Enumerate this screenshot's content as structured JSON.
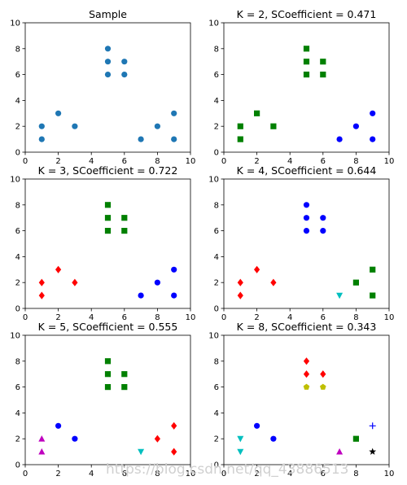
{
  "chart_data": [
    {
      "type": "scatter",
      "title": "Sample",
      "xlim": [
        0,
        10
      ],
      "ylim": [
        0,
        10
      ],
      "xticks": [
        0,
        2,
        4,
        6,
        8,
        10
      ],
      "yticks": [
        0,
        2,
        4,
        6,
        8,
        10
      ],
      "series": [
        {
          "color": "#1f77b4",
          "marker": "circle",
          "points": [
            [
              1,
              2
            ],
            [
              1,
              1
            ],
            [
              2,
              3
            ],
            [
              3,
              2
            ],
            [
              5,
              8
            ],
            [
              5,
              7
            ],
            [
              5,
              6
            ],
            [
              6,
              7
            ],
            [
              6,
              6
            ],
            [
              7,
              1
            ],
            [
              8,
              2
            ],
            [
              9,
              3
            ],
            [
              9,
              1
            ]
          ]
        }
      ]
    },
    {
      "type": "scatter",
      "title": "K = 2, SCoefficient = 0.471",
      "xlim": [
        0,
        10
      ],
      "ylim": [
        0,
        10
      ],
      "xticks": [
        0,
        2,
        4,
        6,
        8,
        10
      ],
      "yticks": [
        0,
        2,
        4,
        6,
        8,
        10
      ],
      "series": [
        {
          "color": "#008000",
          "marker": "square",
          "points": [
            [
              1,
              2
            ],
            [
              1,
              1
            ],
            [
              2,
              3
            ],
            [
              3,
              2
            ],
            [
              5,
              8
            ],
            [
              5,
              7
            ],
            [
              5,
              6
            ],
            [
              6,
              7
            ],
            [
              6,
              6
            ]
          ]
        },
        {
          "color": "#0000ff",
          "marker": "circle",
          "points": [
            [
              7,
              1
            ],
            [
              8,
              2
            ],
            [
              9,
              3
            ],
            [
              9,
              1
            ]
          ]
        }
      ]
    },
    {
      "type": "scatter",
      "title": "K = 3, SCoefficient = 0.722",
      "xlim": [
        0,
        10
      ],
      "ylim": [
        0,
        10
      ],
      "xticks": [
        0,
        2,
        4,
        6,
        8,
        10
      ],
      "yticks": [
        0,
        2,
        4,
        6,
        8,
        10
      ],
      "series": [
        {
          "color": "#ff0000",
          "marker": "diamond",
          "points": [
            [
              1,
              2
            ],
            [
              1,
              1
            ],
            [
              2,
              3
            ],
            [
              3,
              2
            ]
          ]
        },
        {
          "color": "#008000",
          "marker": "square",
          "points": [
            [
              5,
              8
            ],
            [
              5,
              7
            ],
            [
              5,
              6
            ],
            [
              6,
              7
            ],
            [
              6,
              6
            ]
          ]
        },
        {
          "color": "#0000ff",
          "marker": "circle",
          "points": [
            [
              7,
              1
            ],
            [
              8,
              2
            ],
            [
              9,
              3
            ],
            [
              9,
              1
            ]
          ]
        }
      ]
    },
    {
      "type": "scatter",
      "title": "K = 4, SCoefficient = 0.644",
      "xlim": [
        0,
        10
      ],
      "ylim": [
        0,
        10
      ],
      "xticks": [
        0,
        2,
        4,
        6,
        8,
        10
      ],
      "yticks": [
        0,
        2,
        4,
        6,
        8,
        10
      ],
      "series": [
        {
          "color": "#ff0000",
          "marker": "diamond",
          "points": [
            [
              1,
              2
            ],
            [
              1,
              1
            ],
            [
              2,
              3
            ],
            [
              3,
              2
            ]
          ]
        },
        {
          "color": "#0000ff",
          "marker": "circle",
          "points": [
            [
              5,
              8
            ],
            [
              5,
              7
            ],
            [
              5,
              6
            ],
            [
              6,
              7
            ],
            [
              6,
              6
            ]
          ]
        },
        {
          "color": "#00bfbf",
          "marker": "triangle-down",
          "points": [
            [
              7,
              1
            ]
          ]
        },
        {
          "color": "#008000",
          "marker": "square",
          "points": [
            [
              8,
              2
            ],
            [
              9,
              3
            ],
            [
              9,
              1
            ]
          ]
        }
      ]
    },
    {
      "type": "scatter",
      "title": "K = 5, SCoefficient = 0.555",
      "xlim": [
        0,
        10
      ],
      "ylim": [
        0,
        10
      ],
      "xticks": [
        0,
        2,
        4,
        6,
        8,
        10
      ],
      "yticks": [
        0,
        2,
        4,
        6,
        8,
        10
      ],
      "series": [
        {
          "color": "#bf00bf",
          "marker": "triangle-up",
          "points": [
            [
              1,
              2
            ],
            [
              1,
              1
            ]
          ]
        },
        {
          "color": "#0000ff",
          "marker": "circle",
          "points": [
            [
              2,
              3
            ],
            [
              3,
              2
            ]
          ]
        },
        {
          "color": "#008000",
          "marker": "square",
          "points": [
            [
              5,
              8
            ],
            [
              5,
              7
            ],
            [
              5,
              6
            ],
            [
              6,
              7
            ],
            [
              6,
              6
            ]
          ]
        },
        {
          "color": "#00bfbf",
          "marker": "triangle-down",
          "points": [
            [
              7,
              1
            ]
          ]
        },
        {
          "color": "#ff0000",
          "marker": "diamond",
          "points": [
            [
              8,
              2
            ],
            [
              9,
              3
            ],
            [
              9,
              1
            ]
          ]
        }
      ]
    },
    {
      "type": "scatter",
      "title": "K = 8, SCoefficient = 0.343",
      "xlim": [
        0,
        10
      ],
      "ylim": [
        0,
        10
      ],
      "xticks": [
        0,
        2,
        4,
        6,
        8,
        10
      ],
      "yticks": [
        0,
        2,
        4,
        6,
        8,
        10
      ],
      "series": [
        {
          "color": "#00bfbf",
          "marker": "triangle-down",
          "points": [
            [
              1,
              2
            ],
            [
              1,
              1
            ]
          ]
        },
        {
          "color": "#0000ff",
          "marker": "circle",
          "points": [
            [
              2,
              3
            ],
            [
              3,
              2
            ]
          ]
        },
        {
          "color": "#ff0000",
          "marker": "diamond",
          "points": [
            [
              5,
              8
            ],
            [
              5,
              7
            ],
            [
              6,
              7
            ]
          ]
        },
        {
          "color": "#bfbf00",
          "marker": "pentagon",
          "points": [
            [
              5,
              6
            ],
            [
              6,
              6
            ]
          ]
        },
        {
          "color": "#bf00bf",
          "marker": "triangle-up",
          "points": [
            [
              7,
              1
            ]
          ]
        },
        {
          "color": "#008000",
          "marker": "square",
          "points": [
            [
              8,
              2
            ]
          ]
        },
        {
          "color": "#0000ff",
          "marker": "plus",
          "points": [
            [
              9,
              3
            ]
          ]
        },
        {
          "color": "#000000",
          "marker": "star",
          "points": [
            [
              9,
              1
            ]
          ]
        }
      ]
    }
  ],
  "watermark": "https://blog.csdn.net/qq_43886513"
}
